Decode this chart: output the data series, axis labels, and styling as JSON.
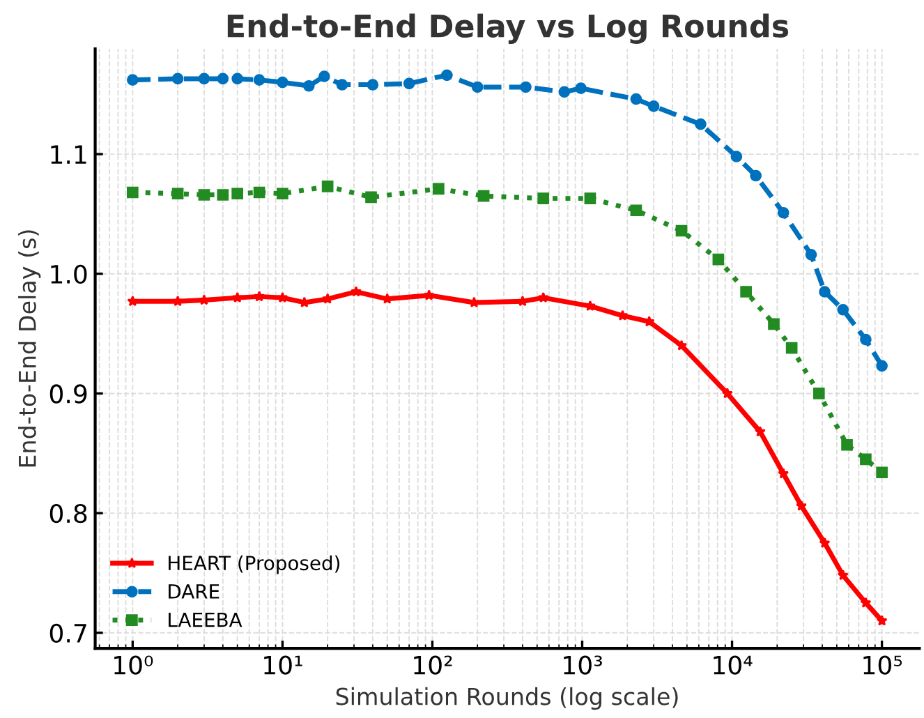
{
  "chart_data": {
    "type": "line",
    "title": "End-to-End Delay vs Log Rounds",
    "xlabel": "Simulation Rounds (log scale)",
    "ylabel": "End-to-End Delay (s)",
    "log": "x",
    "grid": true,
    "legend": "bottom left",
    "xlim": [
      0.5623,
      177828
    ],
    "ylim": [
      0.687,
      1.188
    ],
    "xticks": [
      {
        "value": 1,
        "label": "10⁰"
      },
      {
        "value": 10,
        "label": "10¹"
      },
      {
        "value": 100,
        "label": "10²"
      },
      {
        "value": 1000,
        "label": "10³"
      },
      {
        "value": 10000,
        "label": "10⁴"
      },
      {
        "value": 100000,
        "label": "10⁵"
      }
    ],
    "yticks": [
      {
        "value": 0.7,
        "label": "0.7"
      },
      {
        "value": 0.8,
        "label": "0.8"
      },
      {
        "value": 0.9,
        "label": "0.9"
      },
      {
        "value": 1.0,
        "label": "1.0"
      },
      {
        "value": 1.1,
        "label": "1.1"
      }
    ],
    "series": [
      {
        "name": "HEART (Proposed)",
        "color": "#ff0000",
        "marker": "star",
        "line_style": "solid",
        "x": [
          1,
          2,
          3,
          5,
          7,
          10,
          14,
          20,
          31,
          50,
          95,
          190,
          400,
          550,
          1130,
          1860,
          2800,
          4600,
          9300,
          15400,
          22000,
          29000,
          41500,
          55000,
          78000,
          100000
        ],
        "values": [
          0.977,
          0.977,
          0.978,
          0.98,
          0.981,
          0.98,
          0.976,
          0.979,
          0.985,
          0.979,
          0.982,
          0.976,
          0.977,
          0.98,
          0.973,
          0.965,
          0.96,
          0.94,
          0.9,
          0.868,
          0.833,
          0.806,
          0.775,
          0.748,
          0.725,
          0.71
        ]
      },
      {
        "name": "DARE",
        "color": "#0072bd",
        "marker": "circle",
        "line_style": "dashed",
        "x": [
          1,
          2,
          3,
          4,
          5,
          7,
          10,
          15,
          19,
          25,
          40,
          70,
          125,
          200,
          420,
          760,
          980,
          2290,
          3000,
          6170,
          10700,
          14400,
          22000,
          33700,
          41500,
          55000,
          78000,
          100000
        ],
        "values": [
          1.162,
          1.163,
          1.163,
          1.163,
          1.163,
          1.162,
          1.16,
          1.157,
          1.165,
          1.158,
          1.158,
          1.159,
          1.166,
          1.156,
          1.156,
          1.152,
          1.155,
          1.146,
          1.14,
          1.125,
          1.098,
          1.082,
          1.051,
          1.016,
          0.985,
          0.97,
          0.945,
          0.923
        ]
      },
      {
        "name": "LAEEBA",
        "color": "#228b22",
        "marker": "square",
        "line_style": "dotted",
        "x": [
          1,
          2,
          3,
          4,
          5,
          7,
          10,
          20,
          39,
          110,
          220,
          550,
          1130,
          2290,
          4600,
          8100,
          12400,
          19000,
          25000,
          38000,
          58500,
          78000,
          100000
        ],
        "values": [
          1.068,
          1.067,
          1.066,
          1.066,
          1.067,
          1.068,
          1.067,
          1.073,
          1.064,
          1.071,
          1.065,
          1.063,
          1.063,
          1.053,
          1.036,
          1.012,
          0.985,
          0.958,
          0.938,
          0.9,
          0.857,
          0.845,
          0.834
        ]
      }
    ]
  }
}
